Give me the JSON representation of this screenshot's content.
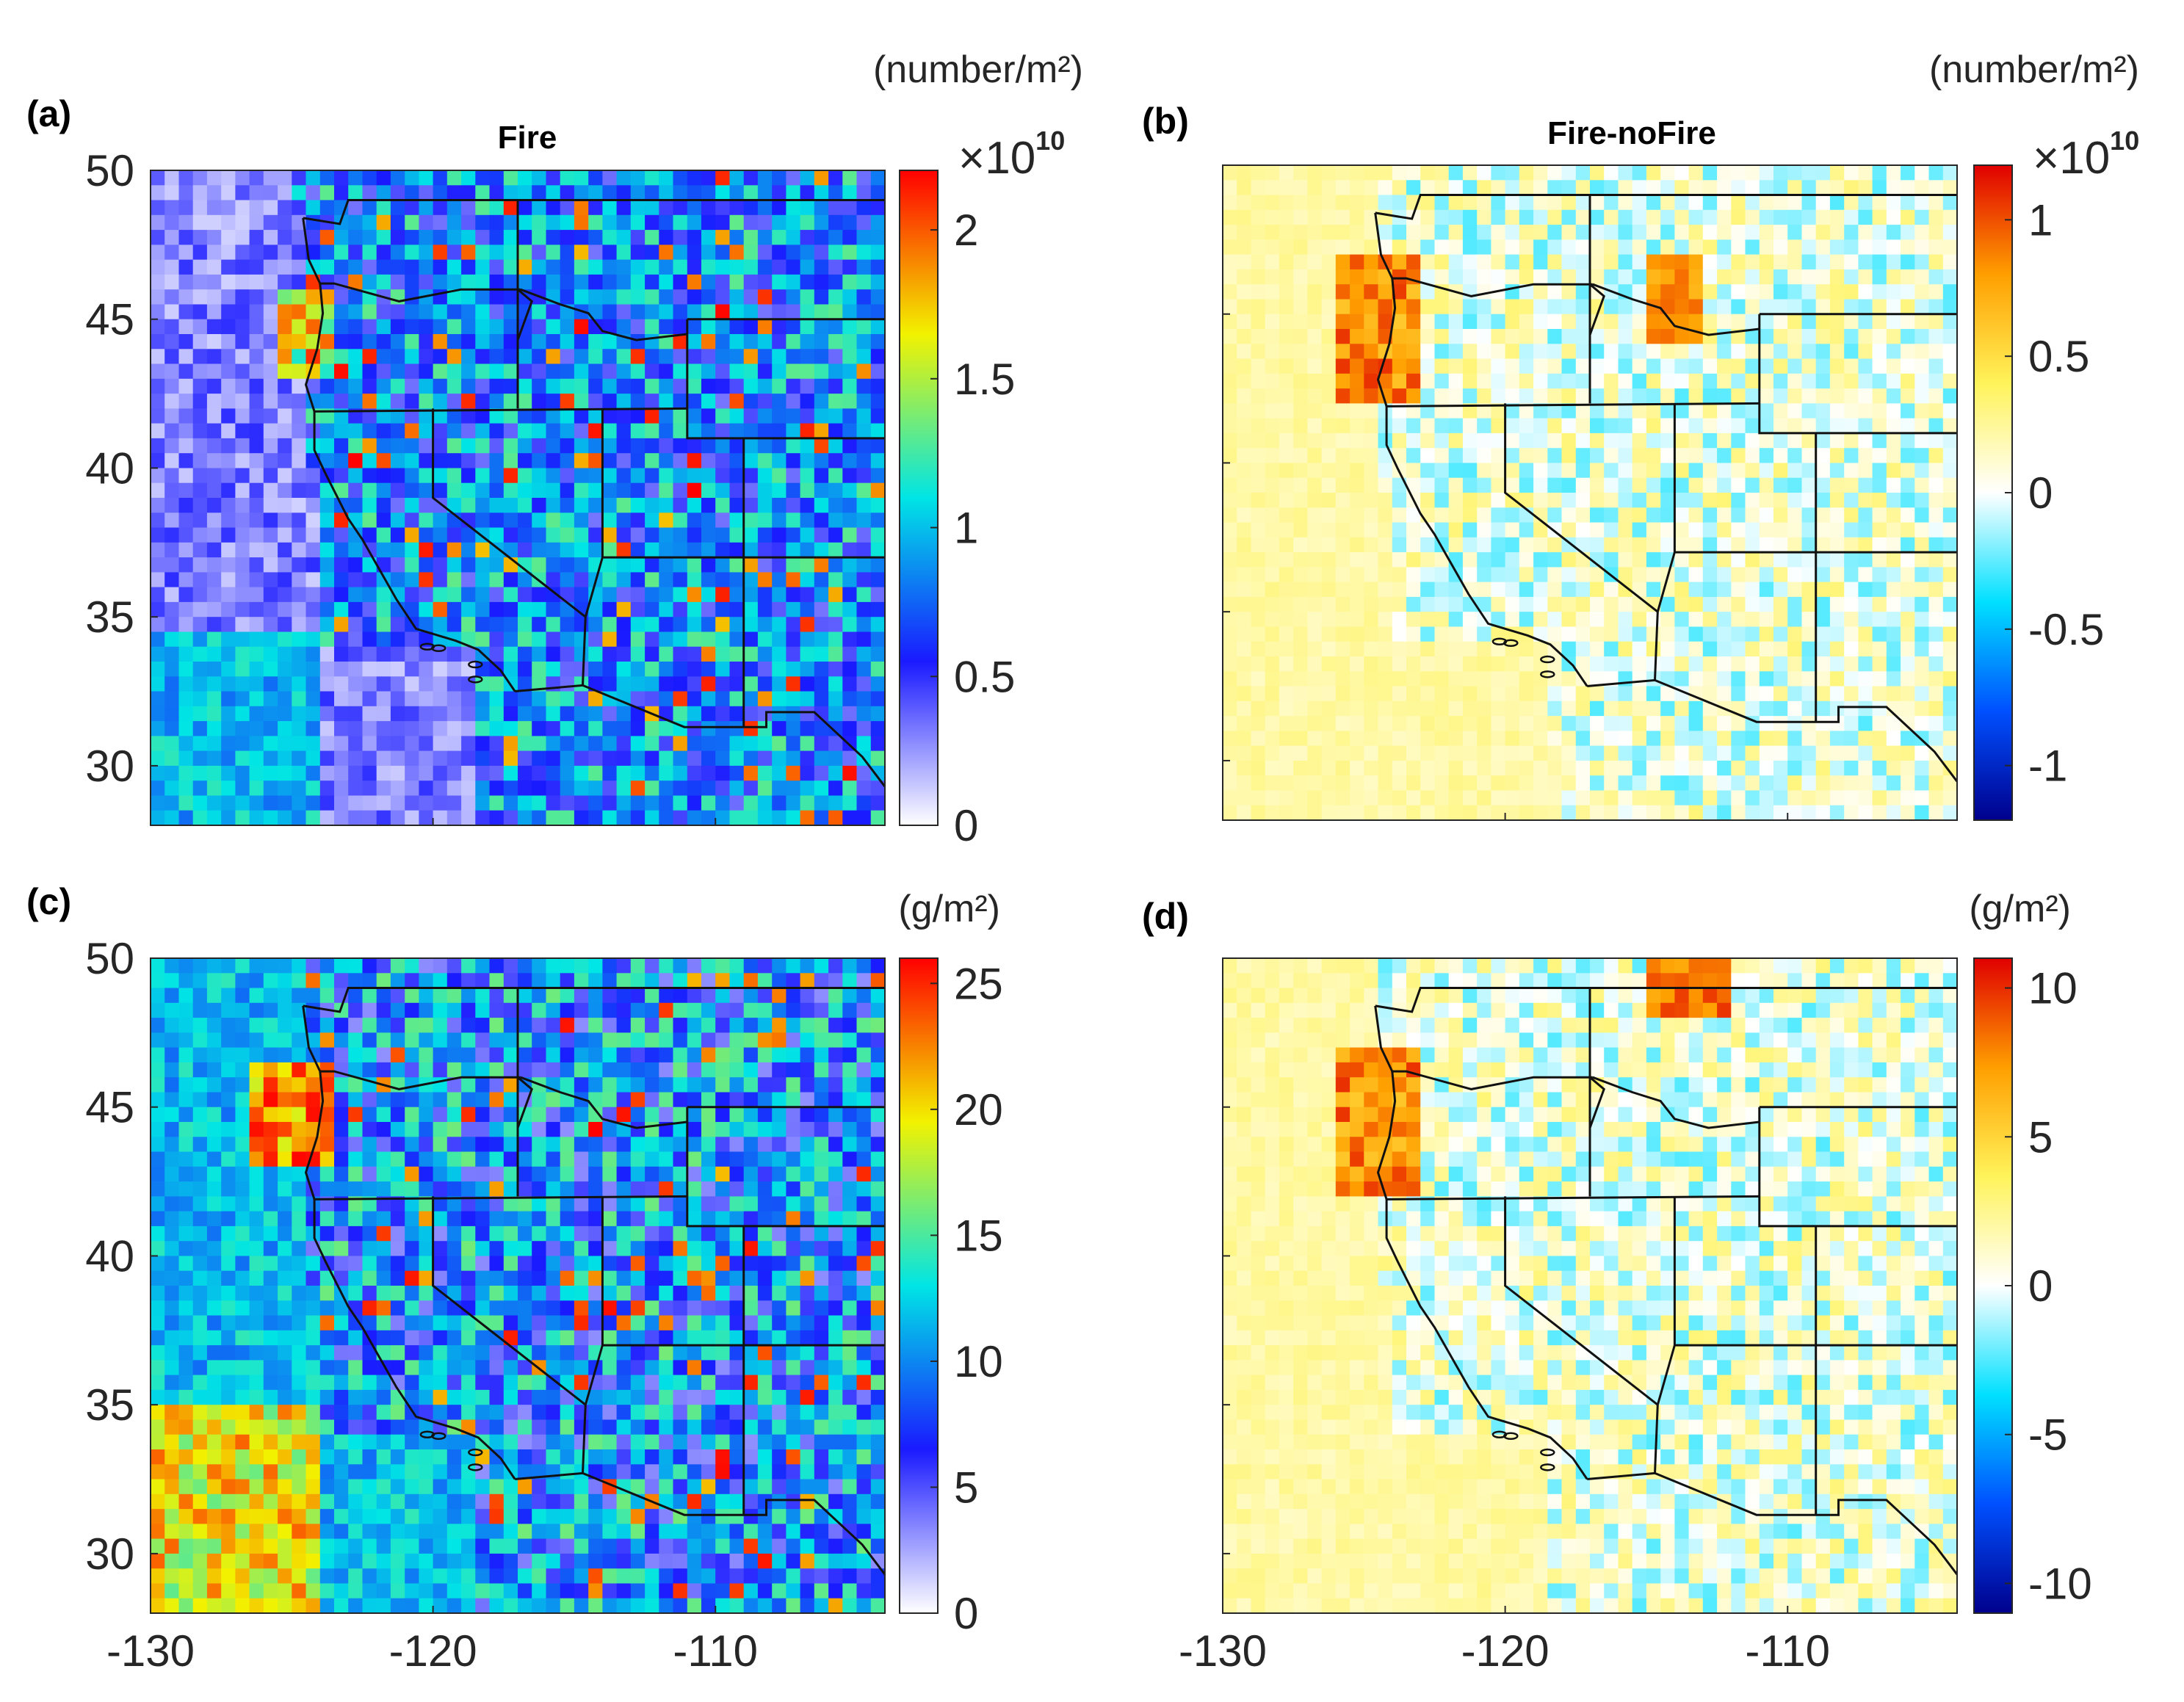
{
  "chart_data": [
    {
      "type": "heatmap",
      "panel_label": "(a)",
      "title": "Fire",
      "colormap": "white-blue-cyan-yellow-red",
      "colors": [
        "#ffffff",
        "#1a1aff",
        "#00e5e5",
        "#f2f200",
        "#ff0000"
      ],
      "unit_label": "(number/m²)",
      "multiplier": "×10",
      "multiplier_exp": "10",
      "colorbar": {
        "min": 0,
        "max": 2.2,
        "ticks": [
          "0",
          "0.5",
          "1",
          "1.5",
          "2"
        ]
      },
      "x_ticks": [
        "-130",
        "-120",
        "-110"
      ],
      "y_ticks": [
        "30",
        "35",
        "40",
        "45",
        "50"
      ],
      "xlim": [
        -130,
        -104
      ],
      "ylim": [
        28,
        50
      ],
      "show_x_tick_labels": false,
      "show_y_tick_labels": true
    },
    {
      "type": "heatmap",
      "panel_label": "(b)",
      "title": "Fire-noFire",
      "colormap": "diverging-blue-white-red",
      "colors": [
        "#00008c",
        "#0050ff",
        "#00e0ff",
        "#ffffff",
        "#fff35a",
        "#ff9f00",
        "#e00000"
      ],
      "unit_label": "(number/m²)",
      "multiplier": "×10",
      "multiplier_exp": "10",
      "colorbar": {
        "min": -1.2,
        "max": 1.2,
        "ticks": [
          "-1",
          "-0.5",
          "0",
          "0.5",
          "1"
        ]
      },
      "x_ticks": [
        "-130",
        "-120",
        "-110"
      ],
      "y_ticks": [
        "30",
        "35",
        "40",
        "45",
        "50"
      ],
      "xlim": [
        -130,
        -104
      ],
      "ylim": [
        28,
        50
      ],
      "show_x_tick_labels": false,
      "show_y_tick_labels": false
    },
    {
      "type": "heatmap",
      "panel_label": "(c)",
      "title": "",
      "colormap": "white-blue-cyan-yellow-red",
      "colors": [
        "#ffffff",
        "#1a1aff",
        "#00e5e5",
        "#f2f200",
        "#ff0000"
      ],
      "unit_label": "(g/m²)",
      "multiplier": "",
      "multiplier_exp": "",
      "colorbar": {
        "min": 0,
        "max": 26,
        "ticks": [
          "0",
          "5",
          "10",
          "15",
          "20",
          "25"
        ]
      },
      "x_ticks": [
        "-130",
        "-120",
        "-110"
      ],
      "y_ticks": [
        "30",
        "35",
        "40",
        "45",
        "50"
      ],
      "xlim": [
        -130,
        -104
      ],
      "ylim": [
        28,
        50
      ],
      "show_x_tick_labels": true,
      "show_y_tick_labels": true
    },
    {
      "type": "heatmap",
      "panel_label": "(d)",
      "title": "",
      "colormap": "diverging-blue-white-red",
      "colors": [
        "#00008c",
        "#0050ff",
        "#00e0ff",
        "#ffffff",
        "#fff35a",
        "#ff9f00",
        "#e00000"
      ],
      "unit_label": "(g/m²)",
      "multiplier": "",
      "multiplier_exp": "",
      "colorbar": {
        "min": -11,
        "max": 11,
        "ticks": [
          "-10",
          "-5",
          "0",
          "5",
          "10"
        ]
      },
      "x_ticks": [
        "-130",
        "-120",
        "-110"
      ],
      "y_ticks": [
        "30",
        "35",
        "40",
        "45",
        "50"
      ],
      "xlim": [
        -130,
        -104
      ],
      "ylim": [
        28,
        50
      ],
      "show_x_tick_labels": true,
      "show_y_tick_labels": false
    }
  ]
}
